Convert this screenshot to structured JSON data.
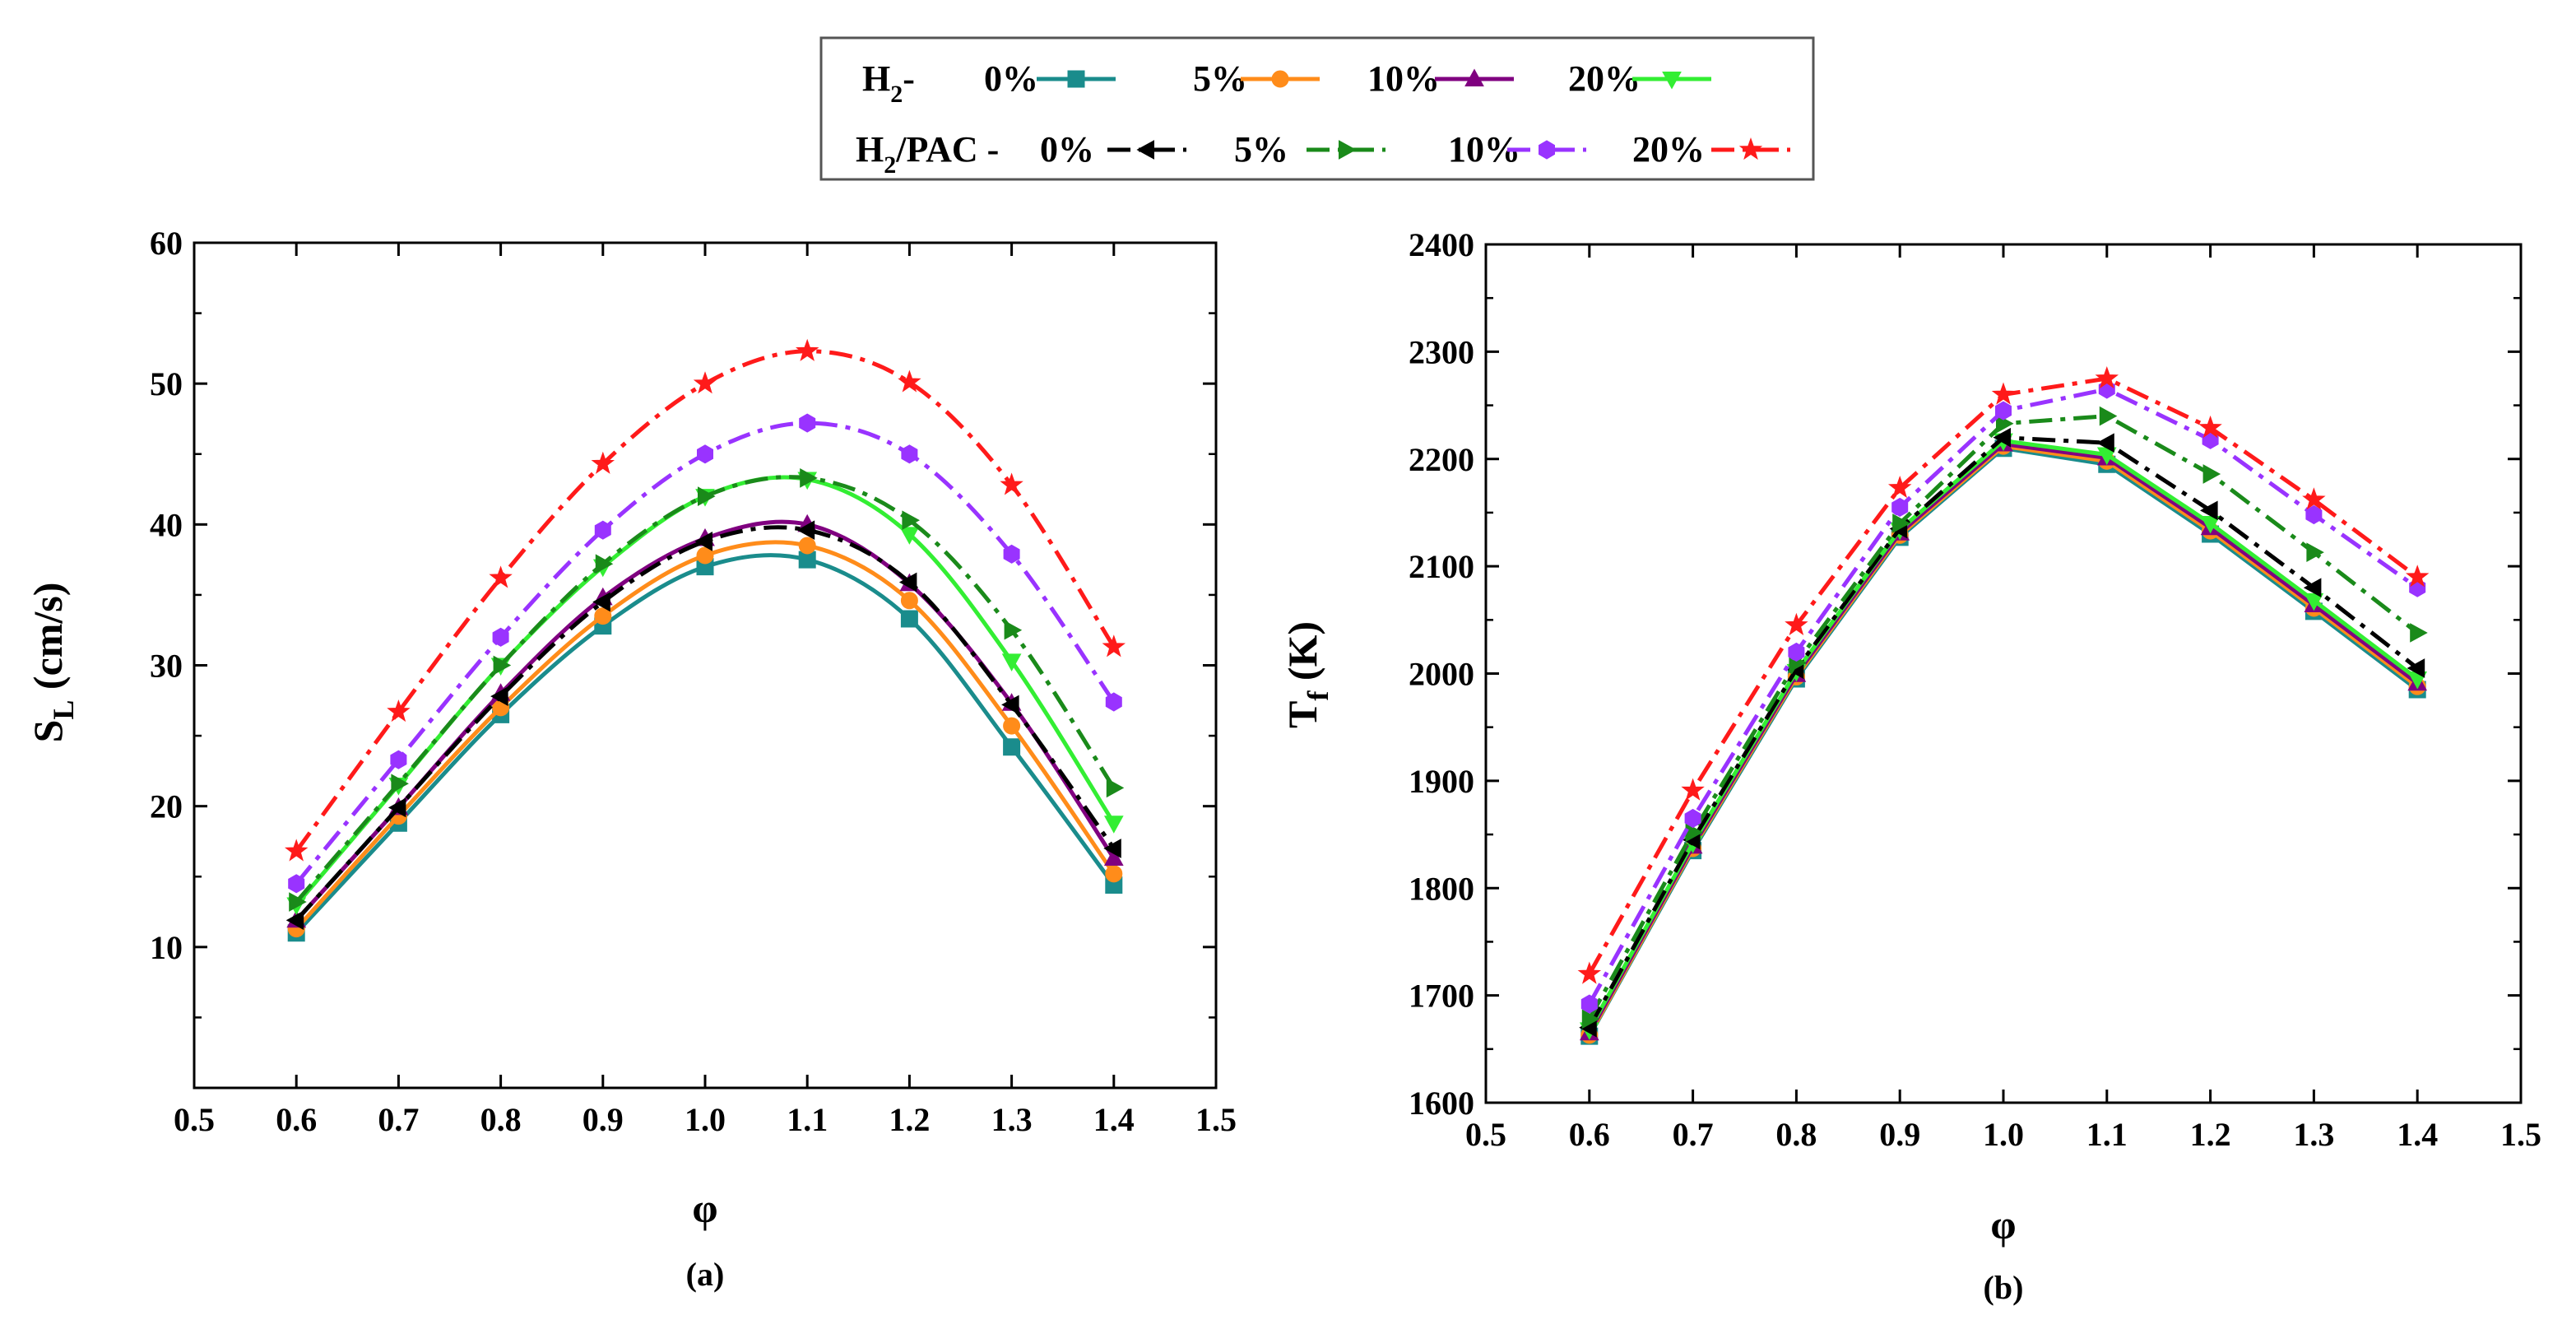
{
  "legend": {
    "row1_prefix": "H",
    "row1_sub": "2",
    "row1_suffix": "-",
    "row2_prefix": "H",
    "row2_sub": "2",
    "row2_suffix": "/PAC -",
    "pct_labels": [
      "0%",
      "5%",
      "10%",
      "20%"
    ]
  },
  "colors": {
    "h2_0": "#1a8c8c",
    "h2_5": "#ff8c1a",
    "h2_10": "#800080",
    "h2_20": "#33ee33",
    "pac_0": "#000000",
    "pac_5": "#1a8a1a",
    "pac_10": "#9933ff",
    "pac_20": "#ff1a1a"
  },
  "chart_data": [
    {
      "type": "line",
      "caption": "(a)",
      "xlabel": "φ",
      "ylabel_main": "S",
      "ylabel_sub": "L",
      "ylabel_unit": " (cm/s)",
      "xlim": [
        0.5,
        1.5
      ],
      "ylim": [
        0,
        60
      ],
      "x_ticks": [
        "0.5",
        "0.6",
        "0.7",
        "0.8",
        "0.9",
        "1.0",
        "1.1",
        "1.2",
        "1.3",
        "1.4",
        "1.5"
      ],
      "y_ticks": [
        "10",
        "20",
        "30",
        "40",
        "50",
        "60"
      ],
      "x": [
        0.6,
        0.7,
        0.8,
        0.9,
        1.0,
        1.1,
        1.2,
        1.3,
        1.4
      ],
      "series": [
        {
          "key": "h2_0",
          "marker": "square",
          "dash": "solid",
          "values": [
            11.0,
            18.8,
            26.5,
            32.8,
            37.0,
            37.5,
            33.3,
            24.2,
            14.4
          ]
        },
        {
          "key": "h2_5",
          "marker": "circle",
          "dash": "solid",
          "values": [
            11.3,
            19.3,
            27.0,
            33.5,
            37.8,
            38.5,
            34.6,
            25.7,
            15.2
          ]
        },
        {
          "key": "h2_10",
          "marker": "triangle-up",
          "dash": "solid",
          "values": [
            11.9,
            19.9,
            28.0,
            34.8,
            39.0,
            40.0,
            35.8,
            27.3,
            16.3
          ]
        },
        {
          "key": "h2_20",
          "marker": "triangle-down",
          "dash": "solid",
          "values": [
            13.0,
            21.5,
            30.0,
            37.0,
            42.0,
            43.2,
            39.3,
            30.3,
            18.8
          ]
        },
        {
          "key": "pac_0",
          "marker": "triangle-left",
          "dash": "dashdot",
          "values": [
            11.9,
            19.9,
            27.8,
            34.5,
            38.8,
            39.6,
            35.9,
            27.2,
            17.0
          ]
        },
        {
          "key": "pac_5",
          "marker": "triangle-right",
          "dash": "dashdot",
          "values": [
            13.2,
            21.6,
            30.0,
            37.2,
            42.0,
            43.3,
            40.3,
            32.5,
            21.3
          ]
        },
        {
          "key": "pac_10",
          "marker": "hexagon",
          "dash": "dashdot",
          "values": [
            14.5,
            23.3,
            32.0,
            39.6,
            45.0,
            47.2,
            45.0,
            37.9,
            27.4
          ]
        },
        {
          "key": "pac_20",
          "marker": "star",
          "dash": "dashdot",
          "values": [
            16.8,
            26.7,
            36.2,
            44.3,
            50.0,
            52.3,
            50.1,
            42.8,
            31.3
          ]
        }
      ]
    },
    {
      "type": "line",
      "caption": "(b)",
      "xlabel": "φ",
      "ylabel_main": "T",
      "ylabel_sub": "f",
      "ylabel_unit": " (K)",
      "xlim": [
        0.5,
        1.5
      ],
      "ylim": [
        1600,
        2400
      ],
      "x_ticks": [
        "0.5",
        "0.6",
        "0.7",
        "0.8",
        "0.9",
        "1.0",
        "1.1",
        "1.2",
        "1.3",
        "1.4",
        "1.5"
      ],
      "y_ticks": [
        "1600",
        "1700",
        "1800",
        "1900",
        "2000",
        "2100",
        "2200",
        "2300",
        "2400"
      ],
      "x": [
        0.6,
        0.7,
        0.8,
        0.9,
        1.0,
        1.1,
        1.2,
        1.3,
        1.4
      ],
      "series": [
        {
          "key": "h2_0",
          "marker": "square",
          "dash": "solid",
          "values": [
            1662,
            1835,
            1995,
            2127,
            2210,
            2195,
            2130,
            2058,
            1985
          ]
        },
        {
          "key": "h2_5",
          "marker": "circle",
          "dash": "solid",
          "values": [
            1663,
            1837,
            1997,
            2129,
            2212,
            2198,
            2133,
            2061,
            1988
          ]
        },
        {
          "key": "h2_10",
          "marker": "triangle-up",
          "dash": "solid",
          "values": [
            1665,
            1839,
            1999,
            2131,
            2214,
            2201,
            2136,
            2064,
            1991
          ]
        },
        {
          "key": "h2_20",
          "marker": "triangle-down",
          "dash": "solid",
          "values": [
            1668,
            1842,
            2002,
            2134,
            2217,
            2204,
            2140,
            2068,
            1995
          ]
        },
        {
          "key": "pac_0",
          "marker": "triangle-left",
          "dash": "dashdot",
          "values": [
            1670,
            1845,
            2004,
            2135,
            2220,
            2215,
            2152,
            2080,
            2005
          ]
        },
        {
          "key": "pac_5",
          "marker": "triangle-right",
          "dash": "dashdot",
          "values": [
            1678,
            1852,
            2010,
            2140,
            2233,
            2240,
            2186,
            2113,
            2038
          ]
        },
        {
          "key": "pac_10",
          "marker": "hexagon",
          "dash": "dashdot",
          "values": [
            1692,
            1865,
            2020,
            2155,
            2245,
            2265,
            2218,
            2148,
            2080
          ]
        },
        {
          "key": "pac_20",
          "marker": "star",
          "dash": "dashdot",
          "values": [
            1720,
            1891,
            2045,
            2173,
            2260,
            2275,
            2229,
            2162,
            2090
          ]
        }
      ]
    }
  ]
}
